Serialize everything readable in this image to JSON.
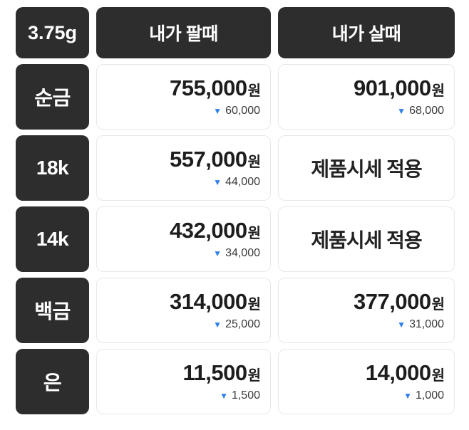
{
  "table": {
    "unit_label": "3.75g",
    "columns": [
      {
        "label": "내가 팔때"
      },
      {
        "label": "내가 살때"
      }
    ],
    "rows": [
      {
        "label": "순금",
        "sell": {
          "price": "755,000",
          "unit": "원",
          "change": "60,000"
        },
        "buy": {
          "price": "901,000",
          "unit": "원",
          "change": "68,000"
        }
      },
      {
        "label": "18k",
        "sell": {
          "price": "557,000",
          "unit": "원",
          "change": "44,000"
        },
        "buy": {
          "text": "제품시세 적용"
        }
      },
      {
        "label": "14k",
        "sell": {
          "price": "432,000",
          "unit": "원",
          "change": "34,000"
        },
        "buy": {
          "text": "제품시세 적용"
        }
      },
      {
        "label": "백금",
        "sell": {
          "price": "314,000",
          "unit": "원",
          "change": "25,000"
        },
        "buy": {
          "price": "377,000",
          "unit": "원",
          "change": "31,000"
        }
      },
      {
        "label": "은",
        "sell": {
          "price": "11,500",
          "unit": "원",
          "change": "1,500"
        },
        "buy": {
          "price": "14,000",
          "unit": "원",
          "change": "1,000"
        }
      }
    ],
    "icons": {
      "down_arrow": "▼"
    },
    "colors": {
      "dark_cell": "#2d2d2d",
      "down_blue": "#2f80ed",
      "price_text": "#1d1d1d",
      "cell_border": "#e8e8e8"
    }
  }
}
